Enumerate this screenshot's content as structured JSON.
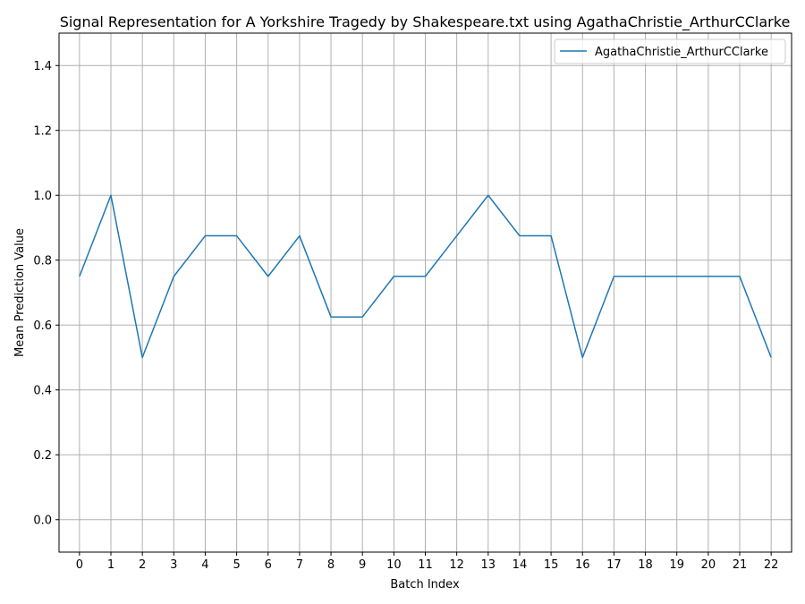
{
  "chart_data": {
    "type": "line",
    "title": "Signal Representation for A Yorkshire Tragedy by Shakespeare.txt using AgathaChristie_ArthurCClarke",
    "xlabel": "Batch Index",
    "ylabel": "Mean Prediction Value",
    "x": [
      0,
      1,
      2,
      3,
      4,
      5,
      6,
      7,
      8,
      9,
      10,
      11,
      12,
      13,
      14,
      15,
      16,
      17,
      18,
      19,
      20,
      21,
      22
    ],
    "xticks": [
      "0",
      "1",
      "2",
      "3",
      "4",
      "5",
      "6",
      "7",
      "8",
      "9",
      "10",
      "11",
      "12",
      "13",
      "14",
      "15",
      "16",
      "17",
      "18",
      "19",
      "20",
      "21",
      "22"
    ],
    "yticks": [
      "0.0",
      "0.2",
      "0.4",
      "0.6",
      "0.8",
      "1.0",
      "1.2",
      "1.4"
    ],
    "ylim": [
      -0.1,
      1.5
    ],
    "xlim": [
      -0.65,
      22.65
    ],
    "grid": true,
    "legend_position": "top-right",
    "series": [
      {
        "name": "AgathaChristie_ArthurCClarke",
        "color": "#1f77b4",
        "values": [
          0.75,
          1.0,
          0.5,
          0.75,
          0.875,
          0.875,
          0.75,
          0.875,
          0.625,
          0.625,
          0.75,
          0.75,
          0.875,
          1.0,
          0.875,
          0.875,
          0.5,
          0.75,
          0.75,
          0.75,
          0.75,
          0.75,
          0.5
        ]
      }
    ]
  }
}
